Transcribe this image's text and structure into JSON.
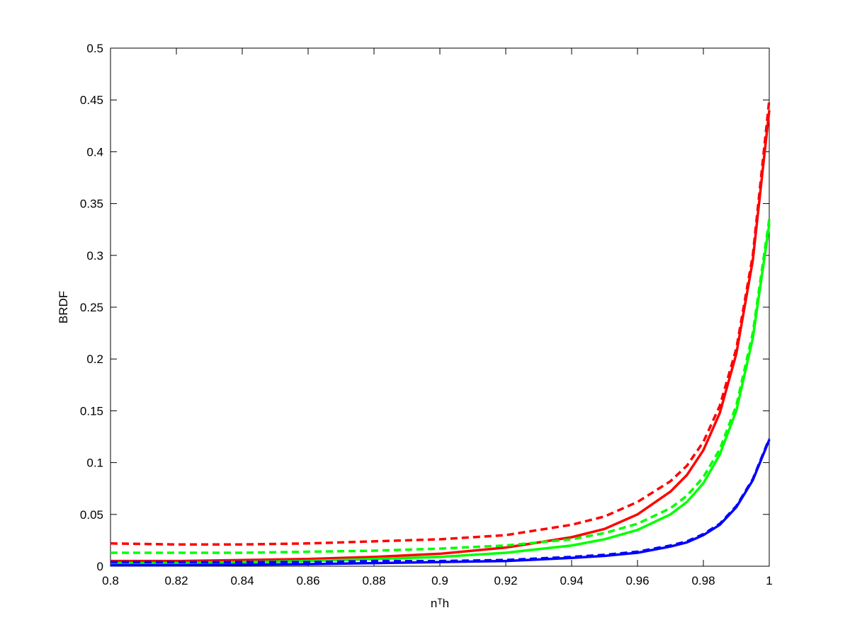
{
  "chart_data": {
    "type": "line",
    "xlabel": "nᵀh",
    "ylabel": "BRDF",
    "x": [
      0.8,
      0.82,
      0.84,
      0.86,
      0.88,
      0.9,
      0.92,
      0.94,
      0.95,
      0.96,
      0.97,
      0.975,
      0.98,
      0.985,
      0.99,
      0.995,
      1
    ],
    "series": [
      {
        "color": "#ff0000",
        "dashed": false,
        "values": [
          0.005,
          0.005,
          0.006,
          0.007,
          0.009,
          0.012,
          0.018,
          0.028,
          0.036,
          0.05,
          0.072,
          0.088,
          0.112,
          0.148,
          0.205,
          0.295,
          0.44
        ]
      },
      {
        "color": "#ff0000",
        "dashed": true,
        "values": [
          0.022,
          0.021,
          0.021,
          0.022,
          0.024,
          0.026,
          0.03,
          0.04,
          0.048,
          0.062,
          0.082,
          0.097,
          0.12,
          0.155,
          0.21,
          0.3,
          0.45
        ]
      },
      {
        "color": "#00ff00",
        "dashed": false,
        "values": [
          0.003,
          0.003,
          0.004,
          0.005,
          0.007,
          0.009,
          0.013,
          0.02,
          0.026,
          0.035,
          0.05,
          0.062,
          0.08,
          0.108,
          0.15,
          0.22,
          0.33
        ]
      },
      {
        "color": "#00ff00",
        "dashed": true,
        "values": [
          0.013,
          0.013,
          0.013,
          0.014,
          0.015,
          0.017,
          0.02,
          0.026,
          0.032,
          0.041,
          0.056,
          0.068,
          0.086,
          0.113,
          0.155,
          0.225,
          0.335
        ]
      },
      {
        "color": "#0000ff",
        "dashed": false,
        "values": [
          0.001,
          0.001,
          0.0015,
          0.002,
          0.003,
          0.004,
          0.005,
          0.008,
          0.01,
          0.013,
          0.019,
          0.023,
          0.03,
          0.04,
          0.057,
          0.083,
          0.122
        ]
      },
      {
        "color": "#0000ff",
        "dashed": true,
        "values": [
          0.004,
          0.004,
          0.004,
          0.004,
          0.005,
          0.005,
          0.006,
          0.009,
          0.011,
          0.014,
          0.02,
          0.024,
          0.031,
          0.041,
          0.058,
          0.084,
          0.123
        ]
      }
    ],
    "xlim": [
      0.8,
      1
    ],
    "xticks": [
      0.8,
      0.82,
      0.84,
      0.86,
      0.88,
      0.9,
      0.92,
      0.94,
      0.96,
      0.98,
      1
    ],
    "ylim": [
      0,
      0.5
    ],
    "yticks": [
      0,
      0.05,
      0.1,
      0.15,
      0.2,
      0.25,
      0.3,
      0.35,
      0.4,
      0.45,
      0.5
    ],
    "grid": false
  }
}
